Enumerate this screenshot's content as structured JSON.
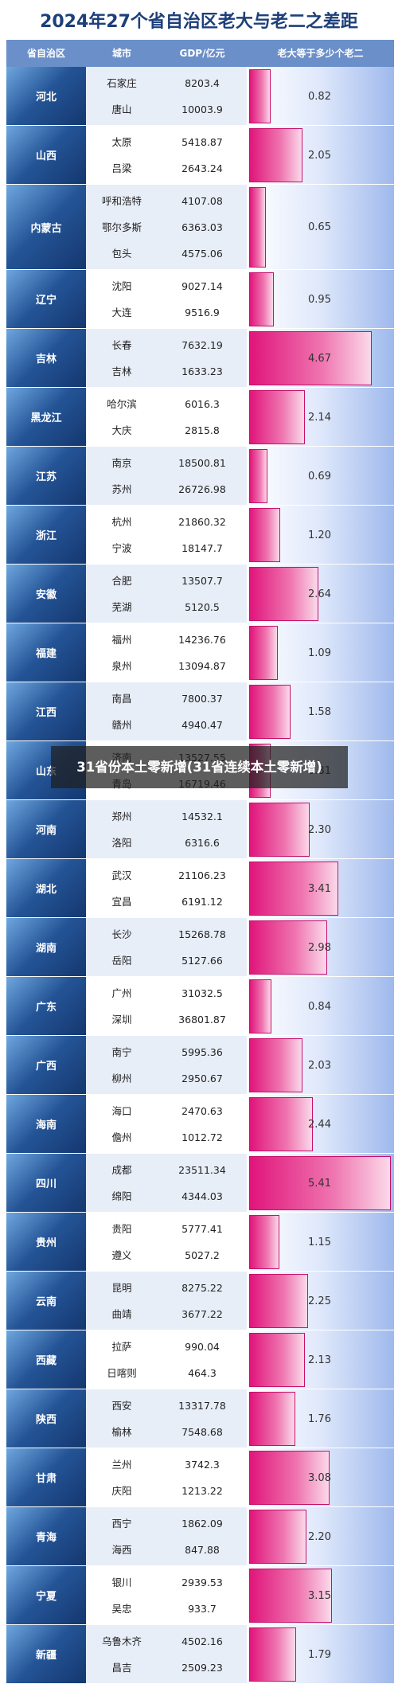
{
  "title": "2024年27个省自治区老大与老二之差距",
  "headers": {
    "province": "省自治区",
    "city": "城市",
    "gdp": "GDP/亿元",
    "ratio": "老大等于多少个老二"
  },
  "overlay_text": "31省份本土零新增(31省连续本土零新增)",
  "colors": {
    "header_bg": "#6b8fc9",
    "province_bg": "#245496",
    "bar": "#e0157b",
    "title": "#1d3f7a"
  },
  "chart_data": {
    "type": "table",
    "title": "2024年27个省自治区老大与老二之差距",
    "columns": [
      "省自治区",
      "城市",
      "GDP/亿元",
      "老大等于多少个老二"
    ],
    "max_ratio": 5.41,
    "rows": [
      {
        "province": "河北",
        "ratio_label": "0.82",
        "ratio": 0.82,
        "cities": [
          [
            "石家庄",
            "8203.4"
          ],
          [
            "唐山",
            "10003.9"
          ]
        ]
      },
      {
        "province": "山西",
        "ratio_label": "2.05",
        "ratio": 2.05,
        "cities": [
          [
            "太原",
            "5418.87"
          ],
          [
            "吕梁",
            "2643.24"
          ]
        ]
      },
      {
        "province": "内蒙古",
        "ratio_label": "0.65",
        "ratio": 0.65,
        "cities": [
          [
            "呼和浩特",
            "4107.08"
          ],
          [
            "鄂尔多斯",
            "6363.03"
          ],
          [
            "包头",
            "4575.06"
          ]
        ]
      },
      {
        "province": "辽宁",
        "ratio_label": "0.95",
        "ratio": 0.95,
        "cities": [
          [
            "沈阳",
            "9027.14"
          ],
          [
            "大连",
            "9516.9"
          ]
        ]
      },
      {
        "province": "吉林",
        "ratio_label": "4.67",
        "ratio": 4.67,
        "cities": [
          [
            "长春",
            "7632.19"
          ],
          [
            "吉林",
            "1633.23"
          ]
        ]
      },
      {
        "province": "黑龙江",
        "ratio_label": "2.14",
        "ratio": 2.14,
        "cities": [
          [
            "哈尔滨",
            "6016.3"
          ],
          [
            "大庆",
            "2815.8"
          ]
        ]
      },
      {
        "province": "江苏",
        "ratio_label": "0.69",
        "ratio": 0.69,
        "cities": [
          [
            "南京",
            "18500.81"
          ],
          [
            "苏州",
            "26726.98"
          ]
        ]
      },
      {
        "province": "浙江",
        "ratio_label": "1.20",
        "ratio": 1.2,
        "cities": [
          [
            "杭州",
            "21860.32"
          ],
          [
            "宁波",
            "18147.7"
          ]
        ]
      },
      {
        "province": "安徽",
        "ratio_label": "2.64",
        "ratio": 2.64,
        "cities": [
          [
            "合肥",
            "13507.7"
          ],
          [
            "芜湖",
            "5120.5"
          ]
        ]
      },
      {
        "province": "福建",
        "ratio_label": "1.09",
        "ratio": 1.09,
        "cities": [
          [
            "福州",
            "14236.76"
          ],
          [
            "泉州",
            "13094.87"
          ]
        ]
      },
      {
        "province": "江西",
        "ratio_label": "1.58",
        "ratio": 1.58,
        "cities": [
          [
            "南昌",
            "7800.37"
          ],
          [
            "赣州",
            "4940.47"
          ]
        ]
      },
      {
        "province": "山东",
        "ratio_label": "0.81",
        "ratio": 0.81,
        "cities": [
          [
            "济南",
            "13527.55"
          ],
          [
            "青岛",
            "16719.46"
          ]
        ]
      },
      {
        "province": "河南",
        "ratio_label": "2.30",
        "ratio": 2.3,
        "cities": [
          [
            "郑州",
            "14532.1"
          ],
          [
            "洛阳",
            "6316.6"
          ]
        ]
      },
      {
        "province": "湖北",
        "ratio_label": "3.41",
        "ratio": 3.41,
        "cities": [
          [
            "武汉",
            "21106.23"
          ],
          [
            "宜昌",
            "6191.12"
          ]
        ]
      },
      {
        "province": "湖南",
        "ratio_label": "2.98",
        "ratio": 2.98,
        "cities": [
          [
            "长沙",
            "15268.78"
          ],
          [
            "岳阳",
            "5127.66"
          ]
        ]
      },
      {
        "province": "广东",
        "ratio_label": "0.84",
        "ratio": 0.84,
        "cities": [
          [
            "广州",
            "31032.5"
          ],
          [
            "深圳",
            "36801.87"
          ]
        ]
      },
      {
        "province": "广西",
        "ratio_label": "2.03",
        "ratio": 2.03,
        "cities": [
          [
            "南宁",
            "5995.36"
          ],
          [
            "柳州",
            "2950.67"
          ]
        ]
      },
      {
        "province": "海南",
        "ratio_label": "2.44",
        "ratio": 2.44,
        "cities": [
          [
            "海口",
            "2470.63"
          ],
          [
            "儋州",
            "1012.72"
          ]
        ]
      },
      {
        "province": "四川",
        "ratio_label": "5.41",
        "ratio": 5.41,
        "cities": [
          [
            "成都",
            "23511.34"
          ],
          [
            "绵阳",
            "4344.03"
          ]
        ]
      },
      {
        "province": "贵州",
        "ratio_label": "1.15",
        "ratio": 1.15,
        "cities": [
          [
            "贵阳",
            "5777.41"
          ],
          [
            "遵义",
            "5027.2"
          ]
        ]
      },
      {
        "province": "云南",
        "ratio_label": "2.25",
        "ratio": 2.25,
        "cities": [
          [
            "昆明",
            "8275.22"
          ],
          [
            "曲靖",
            "3677.22"
          ]
        ]
      },
      {
        "province": "西藏",
        "ratio_label": "2.13",
        "ratio": 2.13,
        "cities": [
          [
            "拉萨",
            "990.04"
          ],
          [
            "日喀则",
            "464.3"
          ]
        ]
      },
      {
        "province": "陕西",
        "ratio_label": "1.76",
        "ratio": 1.76,
        "cities": [
          [
            "西安",
            "13317.78"
          ],
          [
            "榆林",
            "7548.68"
          ]
        ]
      },
      {
        "province": "甘肃",
        "ratio_label": "3.08",
        "ratio": 3.08,
        "cities": [
          [
            "兰州",
            "3742.3"
          ],
          [
            "庆阳",
            "1213.22"
          ]
        ]
      },
      {
        "province": "青海",
        "ratio_label": "2.20",
        "ratio": 2.2,
        "cities": [
          [
            "西宁",
            "1862.09"
          ],
          [
            "海西",
            "847.88"
          ]
        ]
      },
      {
        "province": "宁夏",
        "ratio_label": "3.15",
        "ratio": 3.15,
        "cities": [
          [
            "银川",
            "2939.53"
          ],
          [
            "吴忠",
            "933.7"
          ]
        ]
      },
      {
        "province": "新疆",
        "ratio_label": "1.79",
        "ratio": 1.79,
        "cities": [
          [
            "乌鲁木齐",
            "4502.16"
          ],
          [
            "昌吉",
            "2509.23"
          ]
        ]
      }
    ]
  }
}
